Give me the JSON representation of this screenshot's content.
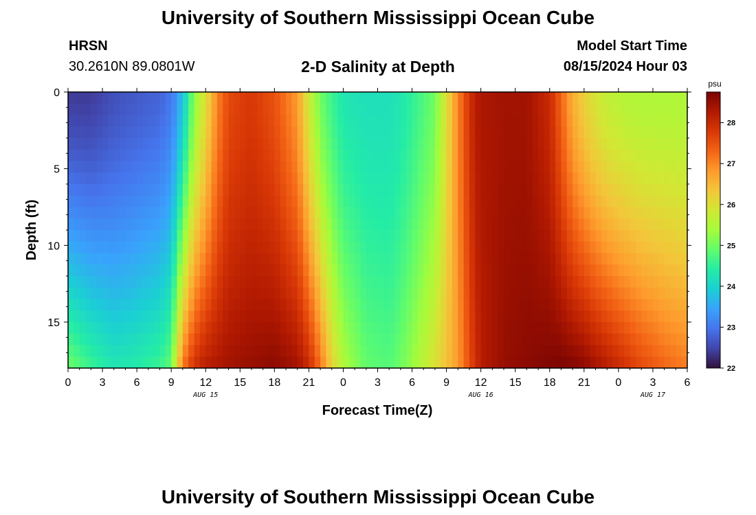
{
  "header": {
    "title": "University of Southern Mississippi Ocean Cube",
    "station": "HRSN",
    "coordinates": "30.2610N  89.0801W",
    "subtitle": "2-D Salinity at Depth",
    "model_start_label": "Model Start Time",
    "model_start_value": "08/15/2024 Hour 03"
  },
  "footer": {
    "title": "University of Southern Mississippi Ocean Cube"
  },
  "colors": {
    "colormap": [
      "#30123b",
      "#4145ab",
      "#4675ed",
      "#39a2fc",
      "#1bcfd4",
      "#24eca6",
      "#61fc6c",
      "#a4fc3b",
      "#d1e834",
      "#f3c63a",
      "#fe9b2d",
      "#f36315",
      "#d93806",
      "#b11901",
      "#7a0402"
    ]
  },
  "chart_data": {
    "type": "heatmap",
    "title": "2-D Salinity at Depth",
    "xlabel": "Forecast Time(Z)",
    "ylabel": "Depth (ft)",
    "x_range_hours": [
      0,
      54
    ],
    "y_range_ft": [
      0,
      18
    ],
    "x_ticks": [
      {
        "h": 0,
        "label": "0"
      },
      {
        "h": 3,
        "label": "3"
      },
      {
        "h": 6,
        "label": "6"
      },
      {
        "h": 9,
        "label": "9"
      },
      {
        "h": 12,
        "label": "12"
      },
      {
        "h": 15,
        "label": "15"
      },
      {
        "h": 18,
        "label": "18"
      },
      {
        "h": 21,
        "label": "21"
      },
      {
        "h": 24,
        "label": "0"
      },
      {
        "h": 27,
        "label": "3"
      },
      {
        "h": 30,
        "label": "6"
      },
      {
        "h": 33,
        "label": "9"
      },
      {
        "h": 36,
        "label": "12"
      },
      {
        "h": 39,
        "label": "15"
      },
      {
        "h": 42,
        "label": "18"
      },
      {
        "h": 45,
        "label": "21"
      },
      {
        "h": 48,
        "label": "0"
      },
      {
        "h": 51,
        "label": "3"
      },
      {
        "h": 54,
        "label": "6"
      }
    ],
    "date_labels": [
      {
        "h": 12,
        "label": "AUG 15"
      },
      {
        "h": 36,
        "label": "AUG 16"
      },
      {
        "h": 51,
        "label": "AUG 17"
      }
    ],
    "y_ticks": [
      0,
      5,
      10,
      15
    ],
    "colorbar": {
      "unit": "psu",
      "min": 22,
      "max": 28.75,
      "ticks": [
        22,
        23,
        24,
        25,
        26,
        27,
        28
      ]
    },
    "profile_hours": [
      0,
      2,
      4,
      6,
      8,
      9,
      9.6,
      10.3,
      11,
      12,
      13,
      14,
      16,
      18,
      20,
      21,
      22,
      23,
      24,
      26,
      28,
      29,
      30,
      32,
      33,
      34,
      34.8,
      35.5,
      36,
      38,
      40,
      42,
      43,
      44,
      45,
      46,
      47,
      48,
      50,
      52,
      54
    ],
    "surface_psu": [
      22.4,
      22.4,
      22.6,
      22.7,
      22.8,
      23.0,
      23.4,
      24.2,
      25.2,
      26.0,
      27.0,
      27.6,
      27.8,
      27.5,
      26.8,
      25.8,
      25.0,
      24.6,
      24.3,
      24.2,
      24.2,
      24.3,
      24.5,
      25.0,
      26.0,
      27.0,
      27.7,
      28.2,
      28.3,
      28.4,
      28.4,
      28.0,
      27.3,
      26.6,
      26.2,
      25.9,
      25.7,
      25.6,
      25.5,
      25.5,
      25.5
    ],
    "bottom_psu": [
      25.0,
      24.6,
      24.3,
      24.4,
      24.6,
      24.9,
      26.4,
      27.4,
      27.9,
      28.2,
      28.3,
      28.4,
      28.5,
      28.6,
      28.4,
      28.0,
      27.2,
      26.2,
      25.5,
      24.9,
      24.8,
      25.0,
      25.3,
      26.0,
      26.4,
      26.8,
      27.4,
      27.9,
      28.2,
      28.5,
      28.6,
      28.7,
      28.75,
      28.7,
      28.6,
      28.4,
      28.2,
      28.0,
      27.6,
      27.3,
      27.1
    ]
  }
}
